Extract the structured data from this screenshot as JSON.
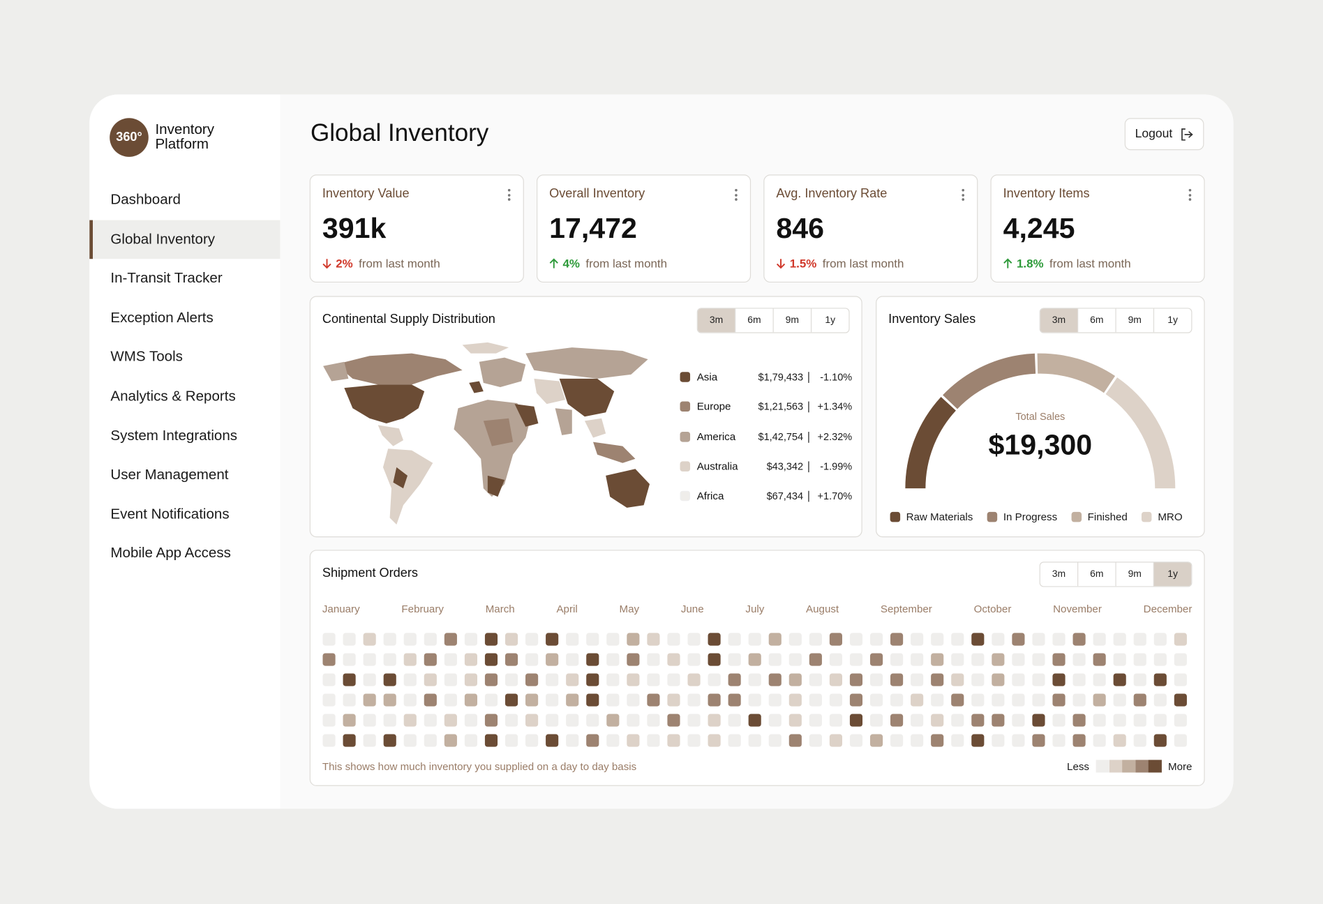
{
  "sidebar": {
    "logo_badge": "360°",
    "logo_text": "Inventory Platform",
    "nav": [
      "Dashboard",
      "Global Inventory",
      "In-Transit Tracker",
      "Exception Alerts",
      "WMS Tools",
      "Analytics & Reports",
      "System Integrations",
      "User Management",
      "Event Notifications",
      "Mobile App Access"
    ],
    "active_nav": "Global Inventory"
  },
  "header": {
    "title": "Global Inventory",
    "logout": "Logout"
  },
  "kpis": [
    {
      "title": "Inventory Value",
      "value": "391k",
      "change": "2%",
      "direction": "down",
      "note": "from last month"
    },
    {
      "title": "Overall Inventory",
      "value": "17,472",
      "change": "4%",
      "direction": "up",
      "note": "from last month"
    },
    {
      "title": "Avg. Inventory Rate",
      "value": "846",
      "change": "1.5%",
      "direction": "down",
      "note": "from last month"
    },
    {
      "title": "Inventory Items",
      "value": "4,245",
      "change": "1.8%",
      "direction": "up",
      "note": "from last month"
    }
  ],
  "supply": {
    "title": "Continental Supply Distribution",
    "periods": [
      "3m",
      "6m",
      "9m",
      "1y"
    ],
    "active_period": "3m",
    "regions": [
      {
        "name": "Asia",
        "amount": "$1,79,433",
        "change": "-1.10%",
        "color": "#6b4c35"
      },
      {
        "name": "Europe",
        "amount": "$1,21,563",
        "change": "+1.34%",
        "color": "#9d8371"
      },
      {
        "name": "America",
        "amount": "$1,42,754",
        "change": "+2.32%",
        "color": "#b5a395"
      },
      {
        "name": "Australia",
        "amount": "$43,342",
        "change": "-1.99%",
        "color": "#ddd2c8"
      },
      {
        "name": "Africa",
        "amount": "$67,434",
        "change": "+1.70%",
        "color": "#efedea"
      }
    ]
  },
  "sales": {
    "title": "Inventory Sales",
    "periods": [
      "3m",
      "6m",
      "9m",
      "1y"
    ],
    "active_period": "3m",
    "center_label": "Total Sales",
    "center_value": "$19,300",
    "chart_data": {
      "type": "gauge",
      "categories": [
        "Raw Materials",
        "In Progress",
        "Finished",
        "MRO"
      ],
      "values": [
        24,
        25,
        20,
        31
      ],
      "colors": [
        "#6b4c35",
        "#9d8371",
        "#c2b0a0",
        "#ddd2c8"
      ]
    }
  },
  "shipments": {
    "title": "Shipment Orders",
    "periods": [
      "3m",
      "6m",
      "9m",
      "1y"
    ],
    "active_period": "1y",
    "months": [
      "January",
      "February",
      "March",
      "April",
      "May",
      "June",
      "July",
      "August",
      "September",
      "October",
      "November",
      "December"
    ],
    "note": "This shows how much inventory you supplied on a day to day basis",
    "less": "Less",
    "more": "More",
    "chart_data": {
      "type": "heatmap",
      "colors": [
        "#efeeec",
        "#ddd2c8",
        "#c2b0a0",
        "#9d8371",
        "#6b4c35"
      ],
      "levels": [
        [
          0,
          0,
          1,
          0,
          0,
          0,
          3,
          0,
          4,
          1,
          0,
          4,
          0,
          0,
          0,
          2,
          1,
          0,
          0,
          4,
          0,
          0,
          2,
          0,
          0,
          3,
          0,
          0,
          3,
          0,
          0,
          0,
          4,
          0,
          3,
          0,
          0,
          3,
          0,
          0,
          0,
          0,
          1
        ],
        [
          3,
          0,
          0,
          0,
          1,
          3,
          0,
          1,
          4,
          3,
          0,
          2,
          0,
          4,
          0,
          3,
          0,
          1,
          0,
          4,
          0,
          2,
          0,
          0,
          3,
          0,
          0,
          3,
          0,
          0,
          2,
          0,
          0,
          2,
          0,
          0,
          3,
          0,
          3,
          0,
          0,
          0,
          0
        ],
        [
          0,
          4,
          0,
          4,
          0,
          1,
          0,
          1,
          3,
          0,
          3,
          0,
          1,
          4,
          0,
          1,
          0,
          0,
          1,
          0,
          3,
          0,
          3,
          2,
          0,
          1,
          3,
          0,
          3,
          0,
          3,
          1,
          0,
          2,
          0,
          0,
          4,
          0,
          0,
          4,
          0,
          4,
          0
        ],
        [
          0,
          0,
          2,
          2,
          0,
          3,
          0,
          2,
          0,
          4,
          2,
          0,
          2,
          4,
          0,
          0,
          3,
          1,
          0,
          3,
          3,
          0,
          0,
          1,
          0,
          0,
          3,
          0,
          0,
          1,
          0,
          3,
          0,
          0,
          0,
          0,
          3,
          0,
          2,
          0,
          3,
          0,
          4
        ],
        [
          0,
          2,
          0,
          0,
          1,
          0,
          1,
          0,
          3,
          0,
          1,
          0,
          0,
          0,
          2,
          0,
          0,
          3,
          0,
          1,
          0,
          4,
          0,
          1,
          0,
          0,
          4,
          0,
          3,
          0,
          1,
          0,
          3,
          3,
          0,
          4,
          0,
          3,
          0,
          0,
          0,
          0,
          0
        ],
        [
          0,
          4,
          0,
          4,
          0,
          0,
          2,
          0,
          4,
          0,
          0,
          4,
          0,
          3,
          0,
          1,
          0,
          1,
          0,
          1,
          0,
          0,
          0,
          3,
          0,
          1,
          0,
          2,
          0,
          0,
          3,
          0,
          4,
          0,
          0,
          3,
          0,
          3,
          0,
          1,
          0,
          4,
          0
        ]
      ]
    }
  }
}
